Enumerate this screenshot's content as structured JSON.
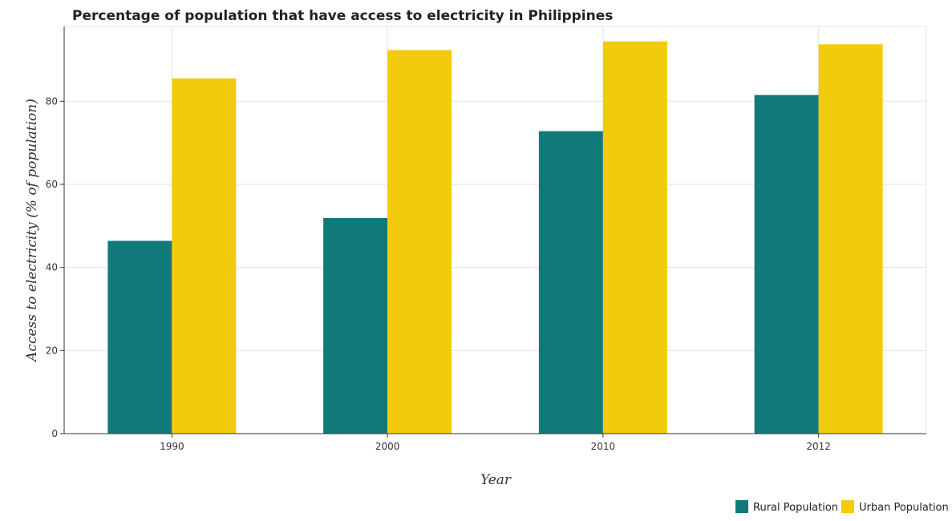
{
  "chart_data": {
    "type": "bar",
    "title": "Percentage of population that have access to electricity in Philippines",
    "xlabel": "Year",
    "ylabel": "Access to electricity (% of population)",
    "categories": [
      "1990",
      "2000",
      "2010",
      "2012"
    ],
    "series": [
      {
        "name": "Rural Population",
        "color": "#107a7a",
        "values": [
          46.4,
          51.9,
          72.8,
          81.5
        ]
      },
      {
        "name": "Urban Population",
        "color": "#f2cb0c",
        "values": [
          85.5,
          92.3,
          94.4,
          93.7
        ]
      }
    ],
    "ylim": [
      0,
      98
    ],
    "yticks": [
      0,
      20,
      40,
      60,
      80
    ],
    "grid": true,
    "legend_position": "bottom-right"
  }
}
